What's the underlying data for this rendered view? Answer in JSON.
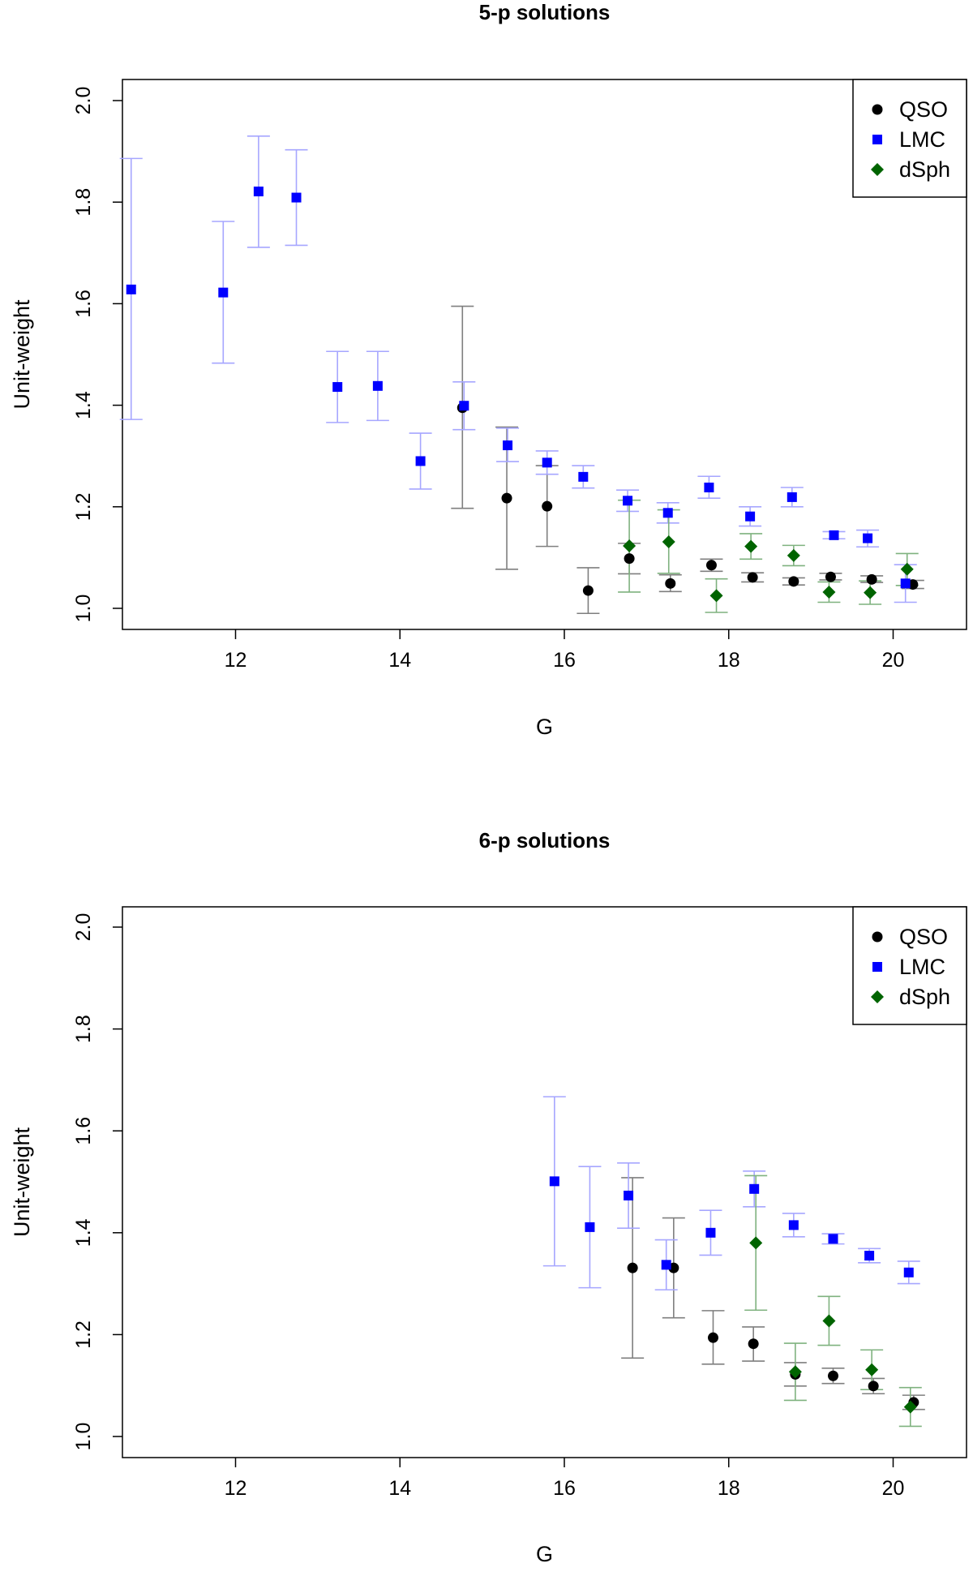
{
  "chart_data": [
    {
      "type": "scatter",
      "title": "5-p solutions",
      "xlabel": "G",
      "ylabel": "Unit-weight",
      "xlim": [
        10.6,
        20.9
      ],
      "ylim": [
        0.96,
        2.05
      ],
      "xticks": [
        "12",
        "14",
        "16",
        "18",
        "20"
      ],
      "yticks": [
        "1.0",
        "1.2",
        "1.4",
        "1.6",
        "1.8",
        "2.0"
      ],
      "grid": false,
      "legend_position": "top-right",
      "series": [
        {
          "name": "QSO",
          "color": "#000000",
          "errorbar_color": "#7f7f7f",
          "marker": "circle",
          "points": [
            {
              "x": 14.76,
              "y": 1.395,
              "lo": 1.197,
              "hi": 1.595
            },
            {
              "x": 15.3,
              "y": 1.217,
              "lo": 1.077,
              "hi": 1.357
            },
            {
              "x": 15.79,
              "y": 1.201,
              "lo": 1.122,
              "hi": 1.281
            },
            {
              "x": 16.29,
              "y": 1.035,
              "lo": 0.99,
              "hi": 1.08
            },
            {
              "x": 16.79,
              "y": 1.098,
              "lo": 1.068,
              "hi": 1.128
            },
            {
              "x": 17.29,
              "y": 1.049,
              "lo": 1.033,
              "hi": 1.066
            },
            {
              "x": 17.79,
              "y": 1.085,
              "lo": 1.073,
              "hi": 1.097
            },
            {
              "x": 18.29,
              "y": 1.061,
              "lo": 1.052,
              "hi": 1.07
            },
            {
              "x": 18.79,
              "y": 1.053,
              "lo": 1.046,
              "hi": 1.06
            },
            {
              "x": 19.24,
              "y": 1.062,
              "lo": 1.056,
              "hi": 1.069
            },
            {
              "x": 19.74,
              "y": 1.057,
              "lo": 1.051,
              "hi": 1.064
            },
            {
              "x": 20.24,
              "y": 1.047,
              "lo": 1.039,
              "hi": 1.055
            }
          ]
        },
        {
          "name": "LMC",
          "color": "#0000ff",
          "errorbar_color": "#a6a6ff",
          "marker": "square",
          "points": [
            {
              "x": 10.73,
              "y": 1.628,
              "lo": 1.372,
              "hi": 1.886
            },
            {
              "x": 11.85,
              "y": 1.622,
              "lo": 1.483,
              "hi": 1.762
            },
            {
              "x": 12.28,
              "y": 1.821,
              "lo": 1.711,
              "hi": 1.93
            },
            {
              "x": 12.74,
              "y": 1.809,
              "lo": 1.715,
              "hi": 1.903
            },
            {
              "x": 13.24,
              "y": 1.436,
              "lo": 1.366,
              "hi": 1.506
            },
            {
              "x": 13.73,
              "y": 1.438,
              "lo": 1.37,
              "hi": 1.506
            },
            {
              "x": 14.25,
              "y": 1.29,
              "lo": 1.235,
              "hi": 1.345
            },
            {
              "x": 14.78,
              "y": 1.399,
              "lo": 1.352,
              "hi": 1.446
            },
            {
              "x": 15.31,
              "y": 1.321,
              "lo": 1.289,
              "hi": 1.355
            },
            {
              "x": 15.79,
              "y": 1.287,
              "lo": 1.264,
              "hi": 1.31
            },
            {
              "x": 16.23,
              "y": 1.259,
              "lo": 1.237,
              "hi": 1.281
            },
            {
              "x": 16.77,
              "y": 1.212,
              "lo": 1.191,
              "hi": 1.233
            },
            {
              "x": 17.26,
              "y": 1.188,
              "lo": 1.168,
              "hi": 1.208
            },
            {
              "x": 17.76,
              "y": 1.238,
              "lo": 1.217,
              "hi": 1.26
            },
            {
              "x": 18.26,
              "y": 1.181,
              "lo": 1.162,
              "hi": 1.2
            },
            {
              "x": 18.77,
              "y": 1.219,
              "lo": 1.2,
              "hi": 1.238
            },
            {
              "x": 19.28,
              "y": 1.144,
              "lo": 1.137,
              "hi": 1.151
            },
            {
              "x": 19.69,
              "y": 1.138,
              "lo": 1.121,
              "hi": 1.154
            },
            {
              "x": 20.15,
              "y": 1.049,
              "lo": 1.012,
              "hi": 1.086
            }
          ]
        },
        {
          "name": "dSph",
          "color": "#006400",
          "errorbar_color": "#7fb27f",
          "marker": "diamond",
          "points": [
            {
              "x": 16.79,
              "y": 1.123,
              "lo": 1.032,
              "hi": 1.213
            },
            {
              "x": 17.27,
              "y": 1.131,
              "lo": 1.069,
              "hi": 1.194
            },
            {
              "x": 17.85,
              "y": 1.025,
              "lo": 0.992,
              "hi": 1.058
            },
            {
              "x": 18.27,
              "y": 1.122,
              "lo": 1.097,
              "hi": 1.147
            },
            {
              "x": 18.79,
              "y": 1.104,
              "lo": 1.084,
              "hi": 1.124
            },
            {
              "x": 19.22,
              "y": 1.032,
              "lo": 1.012,
              "hi": 1.052
            },
            {
              "x": 19.72,
              "y": 1.031,
              "lo": 1.008,
              "hi": 1.054
            },
            {
              "x": 20.17,
              "y": 1.077,
              "lo": 1.045,
              "hi": 1.108
            }
          ]
        }
      ]
    },
    {
      "type": "scatter",
      "title": "6-p solutions",
      "xlabel": "G",
      "ylabel": "Unit-weight",
      "xlim": [
        10.6,
        20.9
      ],
      "ylim": [
        0.96,
        2.05
      ],
      "xticks": [
        "12",
        "14",
        "16",
        "18",
        "20"
      ],
      "yticks": [
        "1.0",
        "1.2",
        "1.4",
        "1.6",
        "1.8",
        "2.0"
      ],
      "grid": false,
      "legend_position": "top-right",
      "series": [
        {
          "name": "QSO",
          "color": "#000000",
          "errorbar_color": "#7f7f7f",
          "marker": "circle",
          "points": [
            {
              "x": 16.83,
              "y": 1.331,
              "lo": 1.154,
              "hi": 1.508
            },
            {
              "x": 17.33,
              "y": 1.331,
              "lo": 1.233,
              "hi": 1.429
            },
            {
              "x": 17.81,
              "y": 1.194,
              "lo": 1.142,
              "hi": 1.247
            },
            {
              "x": 18.3,
              "y": 1.182,
              "lo": 1.148,
              "hi": 1.215
            },
            {
              "x": 18.81,
              "y": 1.122,
              "lo": 1.099,
              "hi": 1.145
            },
            {
              "x": 19.27,
              "y": 1.119,
              "lo": 1.104,
              "hi": 1.134
            },
            {
              "x": 19.76,
              "y": 1.099,
              "lo": 1.084,
              "hi": 1.114
            },
            {
              "x": 20.25,
              "y": 1.067,
              "lo": 1.053,
              "hi": 1.081
            }
          ]
        },
        {
          "name": "LMC",
          "color": "#0000ff",
          "errorbar_color": "#a6a6ff",
          "marker": "square",
          "points": [
            {
              "x": 15.88,
              "y": 1.501,
              "lo": 1.335,
              "hi": 1.667
            },
            {
              "x": 16.31,
              "y": 1.411,
              "lo": 1.292,
              "hi": 1.53
            },
            {
              "x": 16.78,
              "y": 1.473,
              "lo": 1.409,
              "hi": 1.537
            },
            {
              "x": 17.24,
              "y": 1.337,
              "lo": 1.288,
              "hi": 1.386
            },
            {
              "x": 17.78,
              "y": 1.4,
              "lo": 1.356,
              "hi": 1.444
            },
            {
              "x": 18.31,
              "y": 1.486,
              "lo": 1.451,
              "hi": 1.521
            },
            {
              "x": 18.79,
              "y": 1.415,
              "lo": 1.392,
              "hi": 1.438
            },
            {
              "x": 19.27,
              "y": 1.388,
              "lo": 1.378,
              "hi": 1.398
            },
            {
              "x": 19.71,
              "y": 1.355,
              "lo": 1.341,
              "hi": 1.369
            },
            {
              "x": 20.19,
              "y": 1.322,
              "lo": 1.3,
              "hi": 1.344
            }
          ]
        },
        {
          "name": "dSph",
          "color": "#006400",
          "errorbar_color": "#7fb27f",
          "marker": "diamond",
          "points": [
            {
              "x": 18.33,
              "y": 1.38,
              "lo": 1.248,
              "hi": 1.512
            },
            {
              "x": 18.81,
              "y": 1.127,
              "lo": 1.071,
              "hi": 1.183
            },
            {
              "x": 19.22,
              "y": 1.227,
              "lo": 1.179,
              "hi": 1.275
            },
            {
              "x": 19.74,
              "y": 1.131,
              "lo": 1.092,
              "hi": 1.17
            },
            {
              "x": 20.21,
              "y": 1.058,
              "lo": 1.02,
              "hi": 1.096
            }
          ]
        }
      ]
    }
  ]
}
